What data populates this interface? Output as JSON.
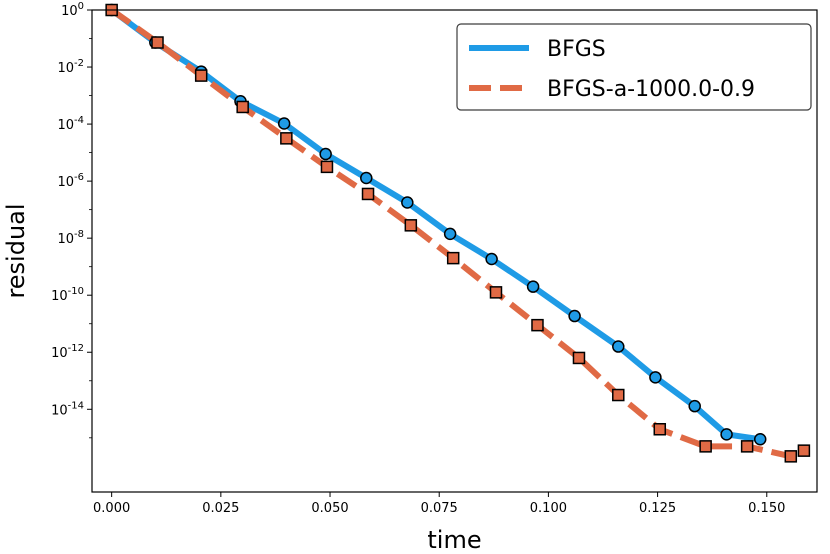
{
  "chart_data": {
    "type": "line",
    "xlabel": "time",
    "ylabel": "residual",
    "xlim": [
      -0.0045,
      0.1615
    ],
    "ylim_log10": [
      -16.9,
      0
    ],
    "yscale": "log",
    "grid": false,
    "legend_position": "top-right",
    "x_ticks": [
      "0.000",
      "0.025",
      "0.050",
      "0.075",
      "0.100",
      "0.125",
      "0.150"
    ],
    "x_tick_values": [
      0,
      0.025,
      0.05,
      0.075,
      0.1,
      0.125,
      0.15
    ],
    "y_ticks": [
      {
        "exp": 0,
        "base": "10",
        "sup": "0"
      },
      {
        "exp": -2,
        "base": "10",
        "sup": "-2"
      },
      {
        "exp": -4,
        "base": "10",
        "sup": "-4"
      },
      {
        "exp": -6,
        "base": "10",
        "sup": "-6"
      },
      {
        "exp": -8,
        "base": "10",
        "sup": "-8"
      },
      {
        "exp": -10,
        "base": "10",
        "sup": "-10"
      },
      {
        "exp": -12,
        "base": "10",
        "sup": "-12"
      },
      {
        "exp": -14,
        "base": "10",
        "sup": "-14"
      }
    ],
    "series": [
      {
        "name": "BFGS",
        "color": "#1f9be6",
        "style": "solid",
        "marker": "circle",
        "x": [
          0.0,
          0.01,
          0.0205,
          0.0295,
          0.0395,
          0.049,
          0.0583,
          0.0677,
          0.0775,
          0.087,
          0.0965,
          0.106,
          0.116,
          0.1245,
          0.1335,
          0.1408,
          0.1485
        ],
        "log10_y": [
          0.0,
          -1.14,
          -2.16,
          -3.2,
          -3.98,
          -5.05,
          -5.89,
          -6.75,
          -7.85,
          -8.73,
          -9.7,
          -10.73,
          -11.8,
          -12.88,
          -13.89,
          -14.88,
          -15.05
        ]
      },
      {
        "name": "BFGS-a-1000.0-0.9",
        "color": "#e06a45",
        "style": "dashed",
        "marker": "square",
        "x": [
          0.0,
          0.0105,
          0.0205,
          0.03,
          0.04,
          0.0493,
          0.0587,
          0.0685,
          0.0782,
          0.088,
          0.0975,
          0.107,
          0.116,
          0.1255,
          0.136,
          0.1455,
          0.1555,
          0.1585
        ],
        "log10_y": [
          0.0,
          -1.14,
          -2.3,
          -3.4,
          -4.5,
          -5.5,
          -6.45,
          -7.55,
          -8.7,
          -9.9,
          -11.05,
          -12.2,
          -13.5,
          -14.7,
          -15.3,
          -15.3,
          -15.65,
          -15.45
        ]
      }
    ]
  }
}
